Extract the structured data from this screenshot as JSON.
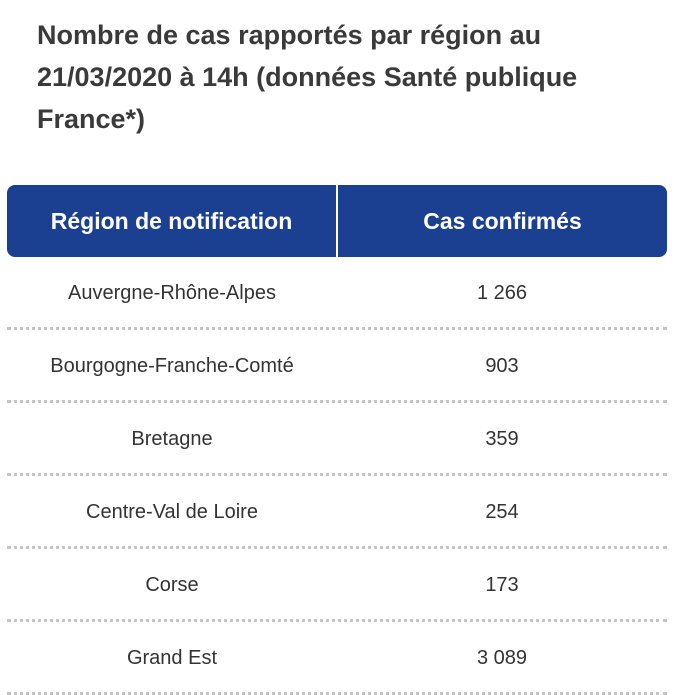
{
  "title": "Nombre de cas rapportés par région au 21/03/2020 à 14h (données Santé publique France*)",
  "table": {
    "headers": {
      "region": "Région de notification",
      "cases": "Cas confirmés"
    },
    "rows": [
      {
        "region": "Auvergne-Rhône-Alpes",
        "cases": "1 266"
      },
      {
        "region": "Bourgogne-Franche-Comté",
        "cases": "903"
      },
      {
        "region": "Bretagne",
        "cases": "359"
      },
      {
        "region": "Centre-Val de Loire",
        "cases": "254"
      },
      {
        "region": "Corse",
        "cases": "173"
      },
      {
        "region": "Grand Est",
        "cases": "3 089"
      }
    ]
  },
  "colors": {
    "header_background": "#1b3f91",
    "header_text": "#ffffff",
    "body_text": "#333333",
    "row_separator": "#c4c4c4"
  }
}
